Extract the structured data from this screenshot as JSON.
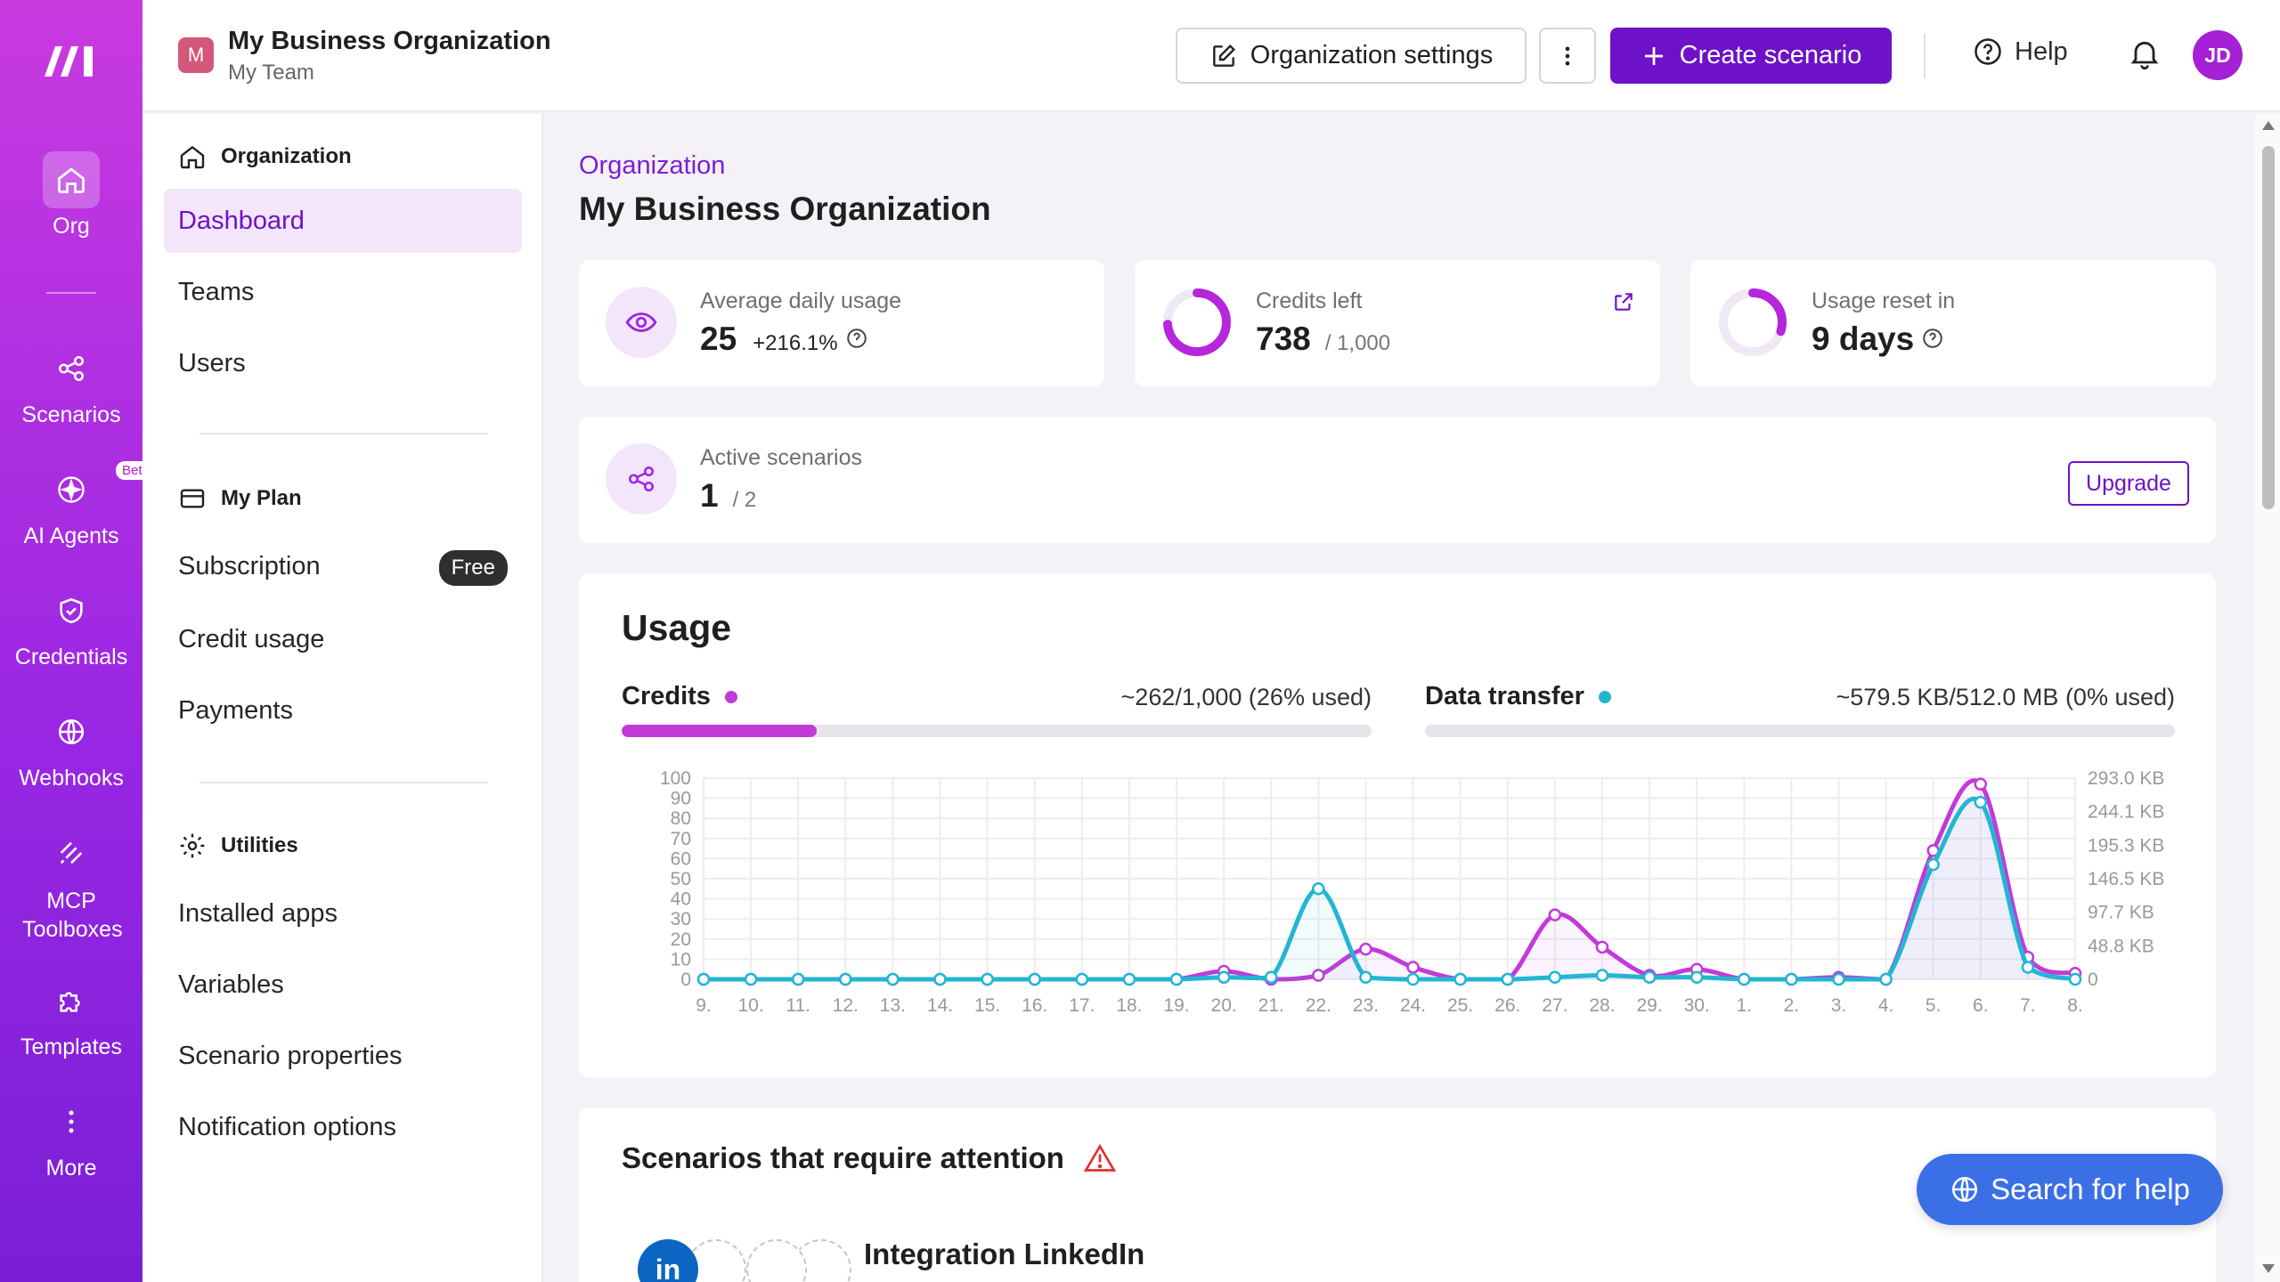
{
  "rail": {
    "items": [
      {
        "label": "Org",
        "icon": "home-icon"
      },
      {
        "label": "Scenarios",
        "icon": "share-icon"
      },
      {
        "label": "AI Agents",
        "icon": "sparkle-icon",
        "badge": "Beta"
      },
      {
        "label": "Credentials",
        "icon": "shield-icon"
      },
      {
        "label": "Webhooks",
        "icon": "globe-icon"
      },
      {
        "label": "MCP Toolboxes",
        "icon": "mcp-icon"
      },
      {
        "label": "Templates",
        "icon": "puzzle-icon"
      },
      {
        "label": "More",
        "icon": "more-vertical-icon"
      }
    ]
  },
  "header": {
    "org_initial": "M",
    "org_name": "My Business Organization",
    "team_name": "My Team",
    "settings_label": "Organization settings",
    "create_label": "Create scenario",
    "help_label": "Help",
    "avatar_initials": "JD"
  },
  "sidebar": {
    "sections": [
      {
        "title": "Organization",
        "items": [
          "Dashboard",
          "Teams",
          "Users"
        ]
      },
      {
        "title": "My Plan",
        "items": [
          "Subscription",
          "Credit usage",
          "Payments"
        ],
        "badge": "Free"
      },
      {
        "title": "Utilities",
        "items": [
          "Installed apps",
          "Variables",
          "Scenario properties",
          "Notification options"
        ]
      }
    ]
  },
  "main": {
    "breadcrumb": "Organization",
    "title": "My Business Organization",
    "stats": {
      "avg_label": "Average daily usage",
      "avg_value": "25",
      "avg_change": "+216.1%",
      "credits_label": "Credits left",
      "credits_value": "738",
      "credits_total": "/ 1,000",
      "credits_fraction_left": 0.738,
      "reset_label": "Usage reset in",
      "reset_value": "9 days",
      "reset_fraction": 0.3
    },
    "active": {
      "label": "Active scenarios",
      "value": "1",
      "total": "/ 2",
      "upgrade_label": "Upgrade"
    },
    "usage": {
      "title": "Usage",
      "credits_label": "Credits",
      "credits_value": "~262/1,000 (26% used)",
      "credits_fraction": 0.26,
      "transfer_label": "Data transfer",
      "transfer_value": "~579.5 KB/512.0 MB (0% used)",
      "transfer_fraction": 0.0
    },
    "attention": {
      "title": "Scenarios that require attention",
      "integration_name": "Integration LinkedIn",
      "integration_icon": "in"
    },
    "search_help_label": "Search for help"
  },
  "colors": {
    "accent": "#6d12c9",
    "credits_series": "#c23ad9",
    "transfer_series": "#22b6d3"
  },
  "chart_data": {
    "type": "line",
    "categories": [
      "9.",
      "10.",
      "11.",
      "12.",
      "13.",
      "14.",
      "15.",
      "16.",
      "17.",
      "18.",
      "19.",
      "20.",
      "21.",
      "22.",
      "23.",
      "24.",
      "25.",
      "26.",
      "27.",
      "28.",
      "29.",
      "30.",
      "1.",
      "2.",
      "3.",
      "4.",
      "5.",
      "6.",
      "7.",
      "8."
    ],
    "ylim": [
      0,
      100
    ],
    "yticks": [
      "0",
      "10",
      "20",
      "30",
      "40",
      "50",
      "60",
      "70",
      "80",
      "90",
      "100"
    ],
    "y2ticks": [
      "0",
      "48.8 KB",
      "97.7 KB",
      "146.5 KB",
      "195.3 KB",
      "244.1 KB",
      "293.0 KB"
    ],
    "series": [
      {
        "name": "Credits",
        "color": "#c23ad9",
        "values": [
          0,
          0,
          0,
          0,
          0,
          0,
          0,
          0,
          0,
          0,
          0,
          4,
          0,
          2,
          15,
          6,
          0,
          0,
          32,
          16,
          2,
          5,
          0,
          0,
          1,
          0,
          64,
          97,
          11,
          3
        ]
      },
      {
        "name": "Data transfer",
        "color": "#22b6d3",
        "values": [
          0,
          0,
          0,
          0,
          0,
          0,
          0,
          0,
          0,
          0,
          0,
          1,
          1,
          45,
          1,
          0,
          0,
          0,
          1,
          2,
          1,
          1,
          0,
          0,
          0,
          0,
          57,
          88,
          6,
          0
        ]
      }
    ],
    "grid": true
  }
}
